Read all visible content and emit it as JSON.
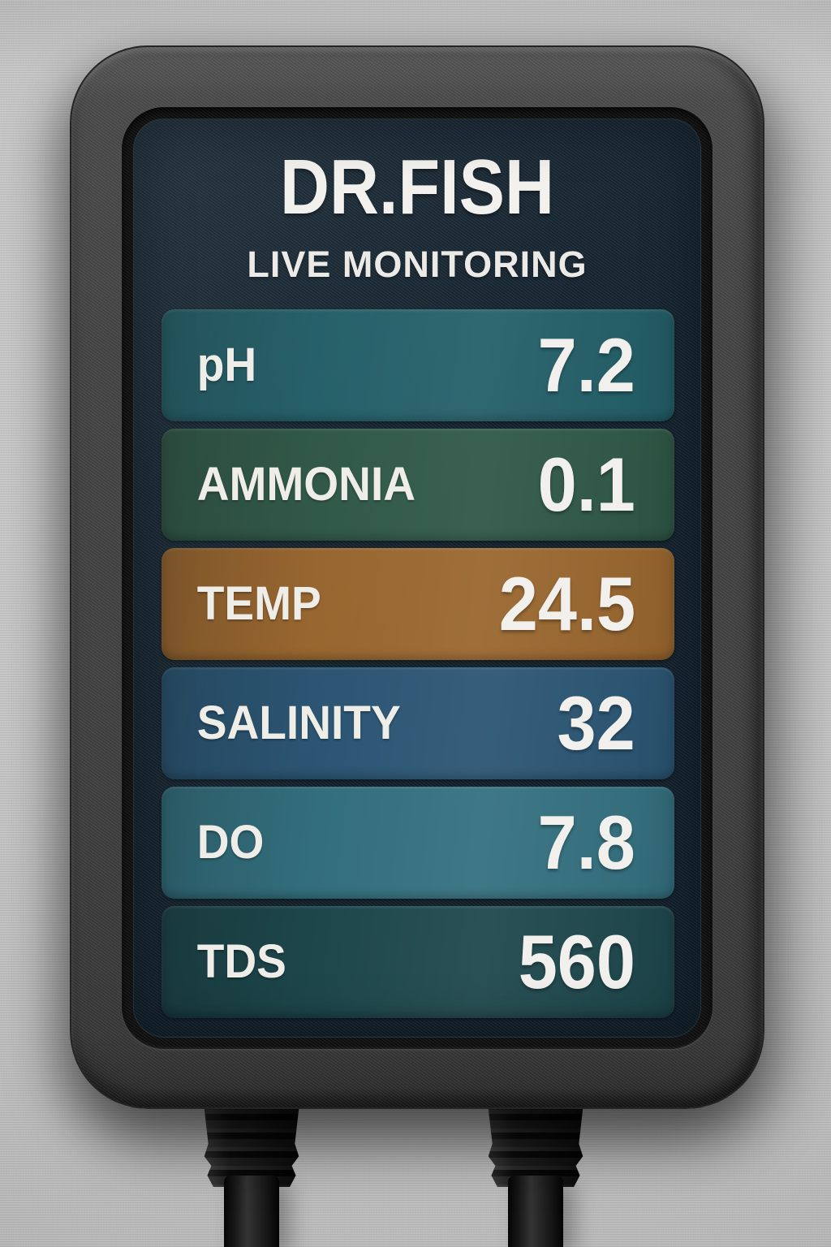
{
  "device": {
    "brand": "DR.FISH",
    "subtitle": "LIVE MONITORING"
  },
  "readings": [
    {
      "label": "pH",
      "value": "7.2",
      "color": "#235f69"
    },
    {
      "label": "AMMONIA",
      "value": "0.1",
      "color": "#2f5847"
    },
    {
      "label": "TEMP",
      "value": "24.5",
      "color": "#9a672f"
    },
    {
      "label": "SALINITY",
      "value": "32",
      "color": "#2b5674"
    },
    {
      "label": "DO",
      "value": "7.8",
      "color": "#34707f"
    },
    {
      "label": "TDS",
      "value": "560",
      "color": "#1e484d"
    }
  ],
  "palette": {
    "wall": "#c6c6c6",
    "housing": "#454545",
    "screen_background": "#14222c",
    "text": "#efeeea",
    "temp_alert": "#9a672f"
  }
}
